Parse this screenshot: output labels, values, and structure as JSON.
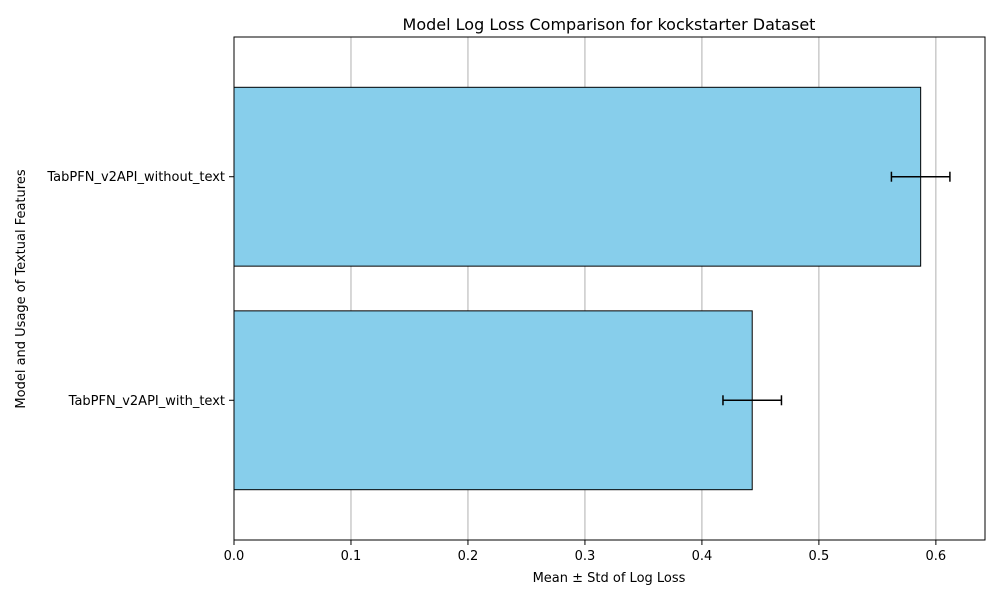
{
  "chart_data": {
    "type": "bar",
    "orientation": "horizontal",
    "title": "Model Log Loss Comparison for kockstarter Dataset",
    "xlabel": "Mean ± Std of Log Loss",
    "ylabel": "Model and Usage of Textual Features",
    "categories": [
      "TabPFN_v2API_without_text",
      "TabPFN_v2API_with_text"
    ],
    "values": [
      0.587,
      0.443
    ],
    "errors": [
      0.025,
      0.025
    ],
    "xlim": [
      0,
      0.642
    ],
    "xticks": [
      0.0,
      0.1,
      0.2,
      0.3,
      0.4,
      0.5,
      0.6
    ],
    "xtick_labels": [
      "0.0",
      "0.1",
      "0.2",
      "0.3",
      "0.4",
      "0.5",
      "0.6"
    ],
    "grid": "x",
    "colors": {
      "bar": "#87ceeb",
      "edge": "#000000",
      "grid": "#b0b0b0",
      "error": "#000000"
    }
  }
}
